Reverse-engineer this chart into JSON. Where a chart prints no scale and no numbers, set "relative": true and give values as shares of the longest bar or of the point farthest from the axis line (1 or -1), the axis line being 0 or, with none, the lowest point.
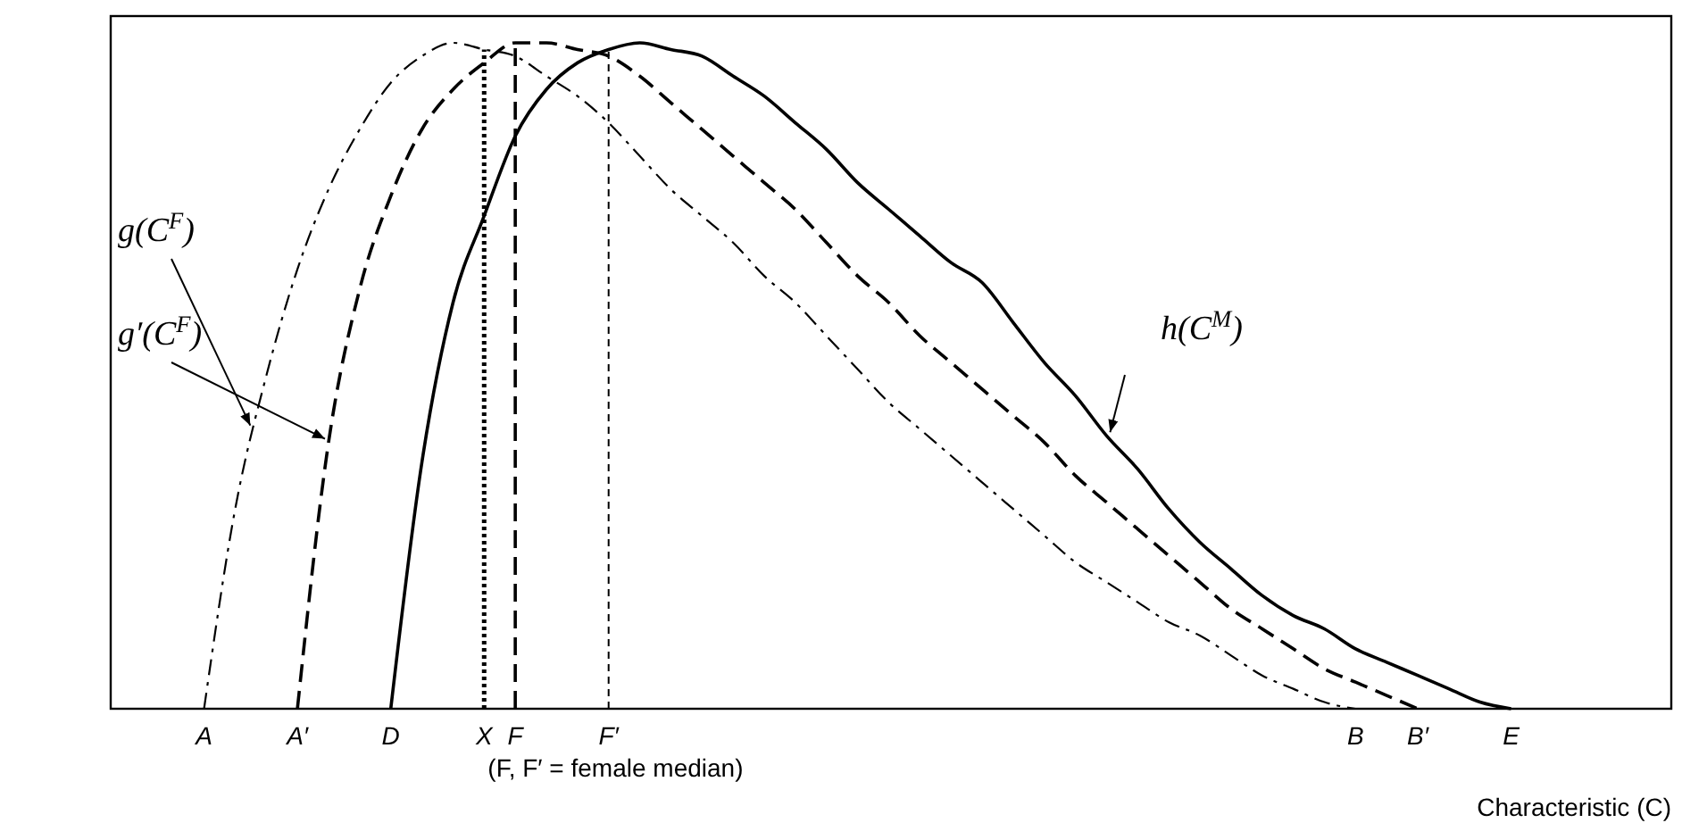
{
  "chart_data": {
    "type": "line",
    "relative": true,
    "xlabel": "Characteristic (C)",
    "categories": [
      null,
      null,
      null,
      "A",
      null,
      null,
      "A′",
      null,
      null,
      "D",
      null,
      null,
      "X",
      "F",
      null,
      null,
      "F′",
      null,
      null,
      null,
      null,
      null,
      null,
      null,
      null,
      null,
      null,
      null,
      null,
      null,
      null,
      null,
      null,
      null,
      null,
      null,
      null,
      null,
      null,
      null,
      "B",
      null,
      "B′",
      null,
      null,
      "E",
      null,
      null,
      null,
      null
    ],
    "series": [
      {
        "name": "g(C$^{F}$)",
        "color": "#000000",
        "line_style": "dashdot",
        "values": [
          null,
          null,
          null,
          0,
          0.3,
          0.5,
          0.66,
          0.78,
          0.87,
          0.94,
          0.98,
          1,
          0.99,
          0.98,
          0.95,
          0.92,
          0.88,
          0.83,
          0.78,
          0.74,
          0.7,
          0.65,
          0.61,
          0.56,
          0.51,
          0.46,
          0.42,
          0.38,
          0.34,
          0.3,
          0.26,
          0.22,
          0.19,
          0.16,
          0.13,
          0.11,
          0.08,
          0.05,
          0.03,
          0.01,
          0,
          null,
          null,
          null,
          null,
          null,
          null,
          null,
          null,
          null
        ]
      },
      {
        "name": "g′(C$^{F}$)",
        "color": "#000000",
        "line_style": "dashed",
        "values": [
          null,
          null,
          null,
          null,
          null,
          null,
          0,
          0.4,
          0.63,
          0.77,
          0.87,
          0.93,
          0.97,
          1,
          1,
          0.99,
          0.98,
          0.95,
          0.91,
          0.87,
          0.83,
          0.79,
          0.75,
          0.7,
          0.65,
          0.61,
          0.56,
          0.52,
          0.48,
          0.44,
          0.4,
          0.35,
          0.31,
          0.27,
          0.23,
          0.19,
          0.15,
          0.12,
          0.09,
          0.06,
          0.04,
          0.02,
          0,
          null,
          null,
          null,
          null,
          null,
          null,
          null
        ]
      },
      {
        "name": "h(C$^{M}$)",
        "color": "#000000",
        "line_style": "solid",
        "values": [
          null,
          null,
          null,
          null,
          null,
          null,
          null,
          null,
          null,
          0,
          0.37,
          0.61,
          0.74,
          0.86,
          0.93,
          0.97,
          0.99,
          1,
          0.99,
          0.98,
          0.95,
          0.92,
          0.88,
          0.84,
          0.79,
          0.75,
          0.71,
          0.67,
          0.64,
          0.58,
          0.52,
          0.47,
          0.41,
          0.36,
          0.3,
          0.25,
          0.21,
          0.17,
          0.14,
          0.12,
          0.09,
          0.07,
          0.05,
          0.03,
          0.01,
          0,
          null,
          null,
          null,
          null
        ]
      }
    ],
    "ref_lines": [
      {
        "axis": "x",
        "value": "X",
        "line_style": "dotted",
        "color": "#000000"
      },
      {
        "axis": "x",
        "value": "F",
        "line_style": "dashed",
        "color": "#000000"
      },
      {
        "axis": "x",
        "value": "F′",
        "line_style": "thin-dashed",
        "color": "#000000"
      }
    ],
    "annotations": [
      "(F, F′ = female median)"
    ]
  }
}
